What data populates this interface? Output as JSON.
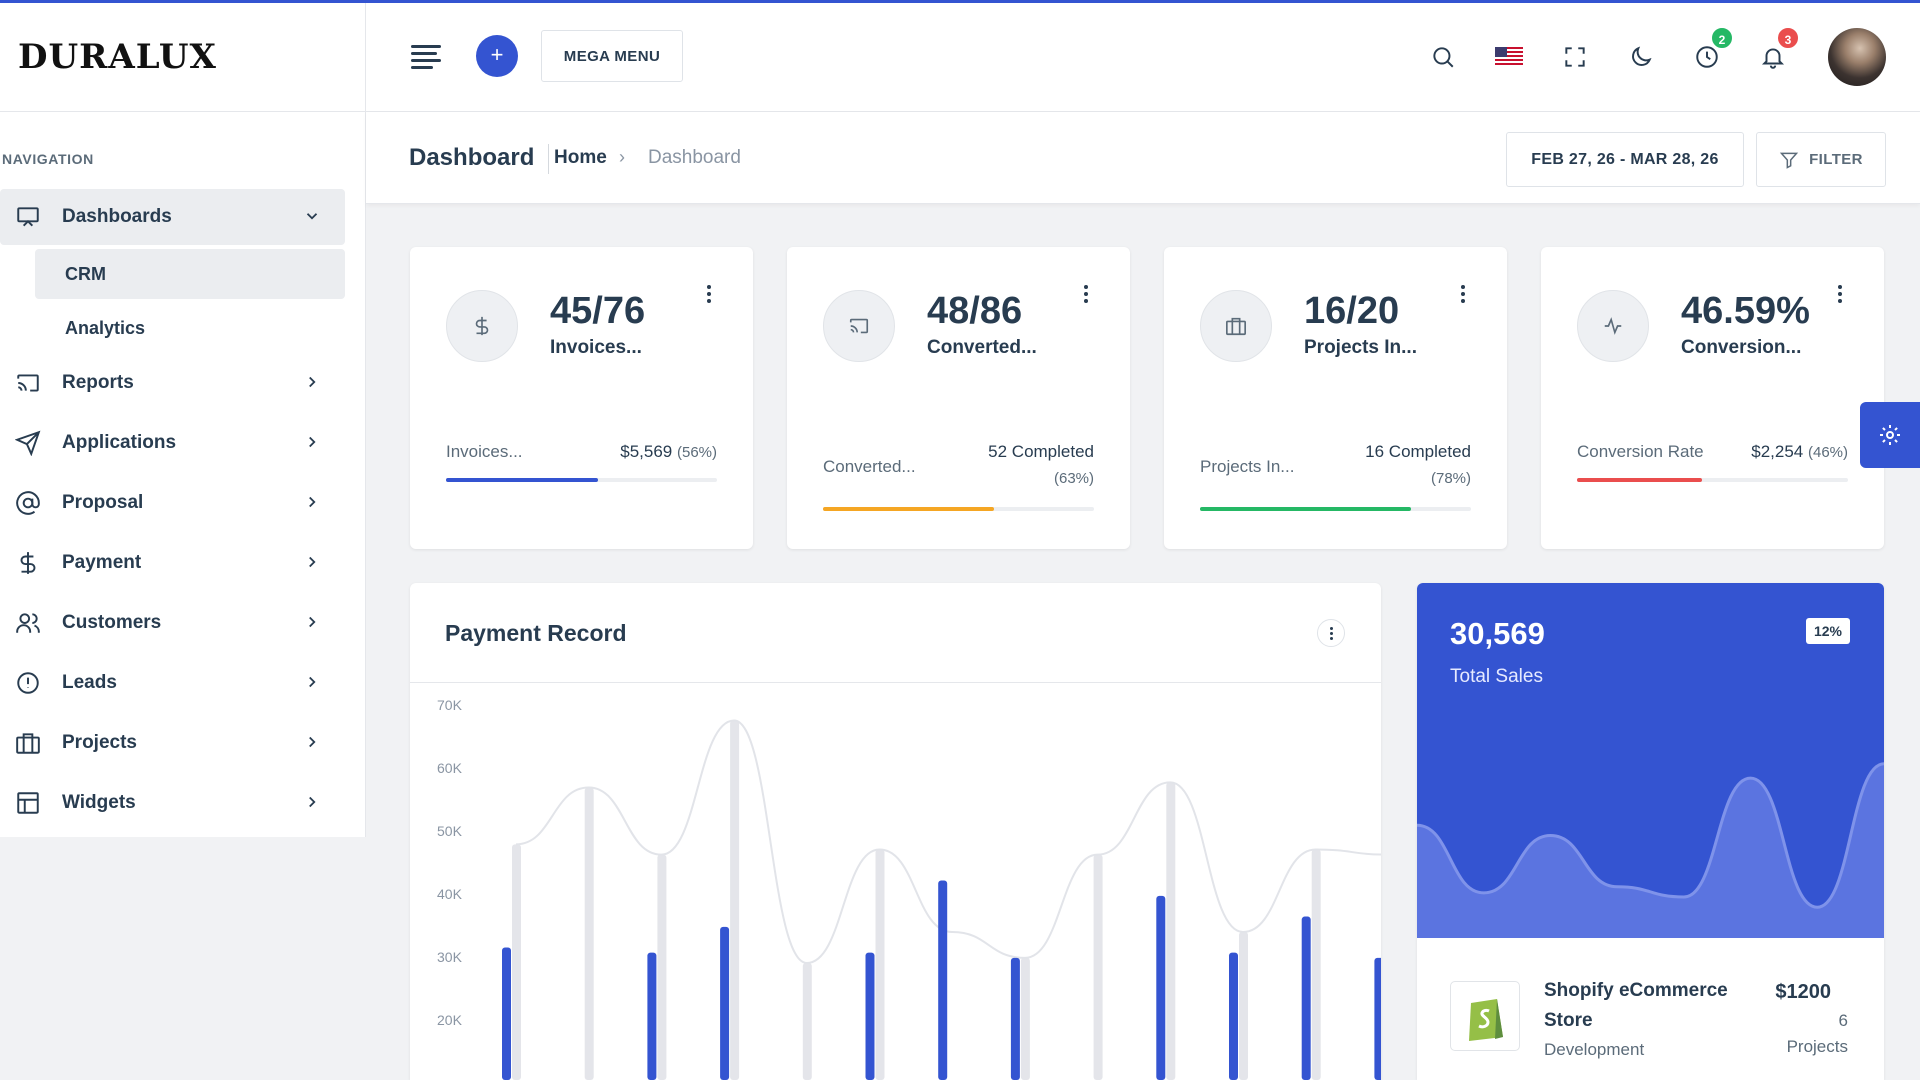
{
  "brand": {
    "logo": "DURALUX",
    "accent": "#3454d1"
  },
  "header": {
    "plus_label": "+",
    "mega_menu": "MEGA MENU",
    "icons": [
      "search-icon",
      "us-flag-icon",
      "fullscreen-icon",
      "moon-icon",
      "clock-icon",
      "bell-icon"
    ],
    "clock_badge": "2",
    "bell_badge": "3"
  },
  "sidebar": {
    "section_title": "NAVIGATION",
    "items": [
      {
        "label": "Dashboards",
        "icon": "monitor-icon"
      },
      {
        "label": "Reports",
        "icon": "cast-icon"
      },
      {
        "label": "Applications",
        "icon": "send-icon"
      },
      {
        "label": "Proposal",
        "icon": "at-icon"
      },
      {
        "label": "Payment",
        "icon": "dollar-icon"
      },
      {
        "label": "Customers",
        "icon": "users-icon"
      },
      {
        "label": "Leads",
        "icon": "alert-circle-icon"
      },
      {
        "label": "Projects",
        "icon": "briefcase-icon"
      },
      {
        "label": "Widgets",
        "icon": "layout-icon"
      }
    ],
    "sub_items": [
      {
        "label": "CRM"
      },
      {
        "label": "Analytics"
      }
    ]
  },
  "page": {
    "title": "Dashboard",
    "breadcrumb_home": "Home",
    "breadcrumb_sep": "›",
    "breadcrumb_current": "Dashboard",
    "date_range": "FEB 27, 26 - MAR 28, 26",
    "filter_label": "FILTER"
  },
  "stats": [
    {
      "value": "45/76",
      "label": "Invoices...",
      "foot_label": "Invoices...",
      "foot_value": "$5,569",
      "foot_pct": "(56%)",
      "progress": 0.56,
      "color": "#3454d1",
      "icon": "dollar-icon"
    },
    {
      "value": "48/86",
      "label": "Converted...",
      "foot_label": "Converted...",
      "foot_value": "52 Completed",
      "foot_pct": "(63%)",
      "progress": 0.63,
      "color": "#f5a623",
      "icon": "cast-icon"
    },
    {
      "value": "16/20",
      "label": "Projects In...",
      "foot_label": "Projects In...",
      "foot_value": "16 Completed",
      "foot_pct": "(78%)",
      "progress": 0.78,
      "color": "#25b865",
      "icon": "briefcase-icon"
    },
    {
      "value": "46.59%",
      "label": "Conversion...",
      "foot_label": "Conversion Rate",
      "foot_value": "$2,254",
      "foot_pct": "(46%)",
      "progress": 0.46,
      "color": "#ea4d4d",
      "icon": "activity-icon"
    }
  ],
  "payment": {
    "title": "Payment Record"
  },
  "chart_data": {
    "type": "bar",
    "title": "Payment Record",
    "yticks": [
      "70K",
      "60K",
      "50K",
      "40K",
      "30K",
      "20K"
    ],
    "ylim": [
      0,
      70000
    ],
    "grid": false,
    "series": [
      {
        "values": [
          23000,
          0,
          22000,
          27000,
          0,
          22000,
          36000,
          21000,
          0,
          33000,
          22000,
          29000,
          21000
        ],
        "color": "#3454d1"
      },
      {
        "values": [
          43000,
          54000,
          41000,
          67000,
          20000,
          42000,
          0,
          21000,
          41000,
          55000,
          26000,
          42000,
          55000
        ],
        "color": "#e4e5ea"
      },
      {
        "values": [
          43000,
          54000,
          41000,
          67000,
          20000,
          42000,
          26000,
          21000,
          41000,
          55000,
          26000,
          42000,
          41000
        ],
        "color": "#e9eaee"
      }
    ]
  },
  "sales": {
    "value": "30,569",
    "label": "Total Sales",
    "pct": "12%",
    "wave_values": [
      55,
      22,
      50,
      25,
      20,
      78,
      15,
      85
    ],
    "item": {
      "name": "Shopify eCommerce Store",
      "category": "Development",
      "price": "$1200",
      "count": "6",
      "unit": "Projects"
    }
  }
}
